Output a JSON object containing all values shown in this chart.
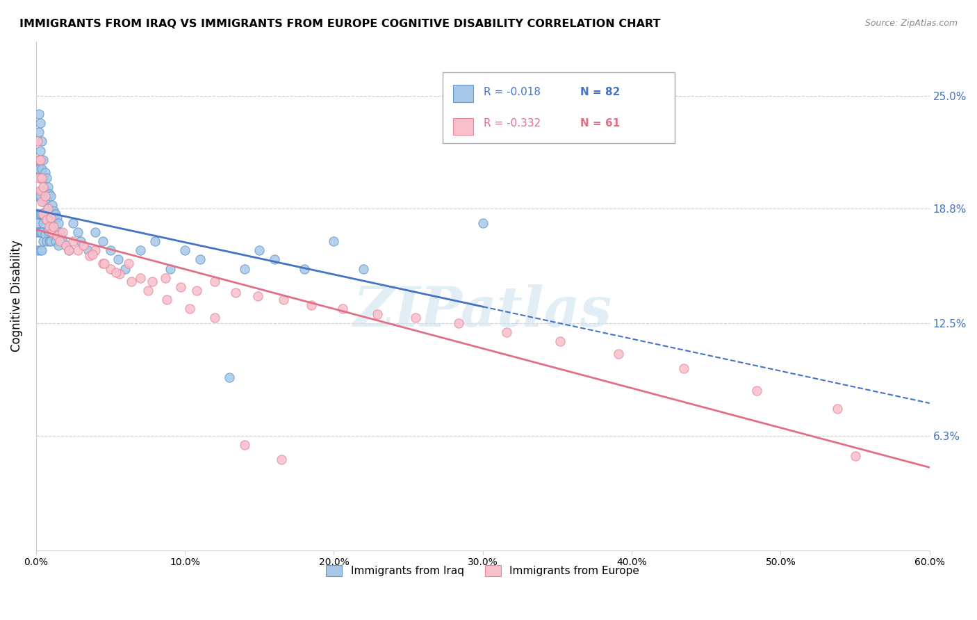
{
  "title": "IMMIGRANTS FROM IRAQ VS IMMIGRANTS FROM EUROPE COGNITIVE DISABILITY CORRELATION CHART",
  "source": "Source: ZipAtlas.com",
  "ylabel_label": "Cognitive Disability",
  "ytick_labels": [
    "6.3%",
    "12.5%",
    "18.8%",
    "25.0%"
  ],
  "ytick_values": [
    0.063,
    0.125,
    0.188,
    0.25
  ],
  "xlim": [
    0.0,
    0.6
  ],
  "ylim": [
    0.0,
    0.28
  ],
  "legend_r1": "R = -0.018",
  "legend_n1": "N = 82",
  "legend_r2": "R = -0.332",
  "legend_n2": "N = 61",
  "iraq_color": "#a8c8e8",
  "iraq_edge_color": "#6699cc",
  "europe_color": "#f9c0cc",
  "europe_edge_color": "#e88898",
  "trendline_iraq_color": "#4472c4",
  "trendline_europe_color": "#e07088",
  "watermark": "ZIPatlas",
  "iraq_x": [
    0.001,
    0.001,
    0.001,
    0.001,
    0.001,
    0.002,
    0.002,
    0.002,
    0.002,
    0.002,
    0.002,
    0.003,
    0.003,
    0.003,
    0.003,
    0.003,
    0.003,
    0.003,
    0.004,
    0.004,
    0.004,
    0.004,
    0.004,
    0.004,
    0.005,
    0.005,
    0.005,
    0.005,
    0.005,
    0.006,
    0.006,
    0.006,
    0.006,
    0.007,
    0.007,
    0.007,
    0.007,
    0.008,
    0.008,
    0.008,
    0.009,
    0.009,
    0.009,
    0.01,
    0.01,
    0.01,
    0.011,
    0.011,
    0.012,
    0.012,
    0.013,
    0.013,
    0.014,
    0.015,
    0.015,
    0.016,
    0.017,
    0.018,
    0.02,
    0.022,
    0.025,
    0.028,
    0.03,
    0.035,
    0.04,
    0.045,
    0.05,
    0.055,
    0.06,
    0.07,
    0.08,
    0.09,
    0.1,
    0.11,
    0.13,
    0.14,
    0.15,
    0.16,
    0.18,
    0.2,
    0.22,
    0.3
  ],
  "iraq_y": [
    0.21,
    0.195,
    0.18,
    0.175,
    0.165,
    0.24,
    0.23,
    0.21,
    0.195,
    0.185,
    0.175,
    0.235,
    0.22,
    0.205,
    0.195,
    0.185,
    0.175,
    0.165,
    0.225,
    0.21,
    0.198,
    0.185,
    0.175,
    0.165,
    0.215,
    0.205,
    0.192,
    0.18,
    0.17,
    0.208,
    0.198,
    0.186,
    0.174,
    0.205,
    0.193,
    0.182,
    0.17,
    0.2,
    0.188,
    0.176,
    0.196,
    0.184,
    0.17,
    0.195,
    0.183,
    0.17,
    0.19,
    0.178,
    0.187,
    0.175,
    0.185,
    0.17,
    0.183,
    0.18,
    0.168,
    0.175,
    0.172,
    0.17,
    0.168,
    0.165,
    0.18,
    0.175,
    0.17,
    0.165,
    0.175,
    0.17,
    0.165,
    0.16,
    0.155,
    0.165,
    0.17,
    0.155,
    0.165,
    0.16,
    0.095,
    0.155,
    0.165,
    0.16,
    0.155,
    0.17,
    0.155,
    0.18
  ],
  "europe_x": [
    0.001,
    0.002,
    0.002,
    0.003,
    0.003,
    0.004,
    0.004,
    0.005,
    0.005,
    0.006,
    0.007,
    0.008,
    0.009,
    0.01,
    0.011,
    0.012,
    0.014,
    0.016,
    0.018,
    0.02,
    0.022,
    0.025,
    0.028,
    0.032,
    0.036,
    0.04,
    0.045,
    0.05,
    0.056,
    0.062,
    0.07,
    0.078,
    0.087,
    0.097,
    0.108,
    0.12,
    0.134,
    0.149,
    0.166,
    0.185,
    0.206,
    0.229,
    0.255,
    0.284,
    0.316,
    0.352,
    0.391,
    0.435,
    0.484,
    0.538,
    0.55,
    0.038,
    0.046,
    0.054,
    0.064,
    0.075,
    0.088,
    0.103,
    0.12,
    0.14,
    0.165
  ],
  "europe_y": [
    0.225,
    0.215,
    0.205,
    0.215,
    0.198,
    0.205,
    0.192,
    0.2,
    0.185,
    0.195,
    0.182,
    0.188,
    0.178,
    0.183,
    0.175,
    0.178,
    0.173,
    0.17,
    0.175,
    0.168,
    0.165,
    0.17,
    0.165,
    0.168,
    0.162,
    0.165,
    0.158,
    0.155,
    0.152,
    0.158,
    0.15,
    0.148,
    0.15,
    0.145,
    0.143,
    0.148,
    0.142,
    0.14,
    0.138,
    0.135,
    0.133,
    0.13,
    0.128,
    0.125,
    0.12,
    0.115,
    0.108,
    0.1,
    0.088,
    0.078,
    0.052,
    0.163,
    0.158,
    0.153,
    0.148,
    0.143,
    0.138,
    0.133,
    0.128,
    0.058,
    0.05
  ]
}
